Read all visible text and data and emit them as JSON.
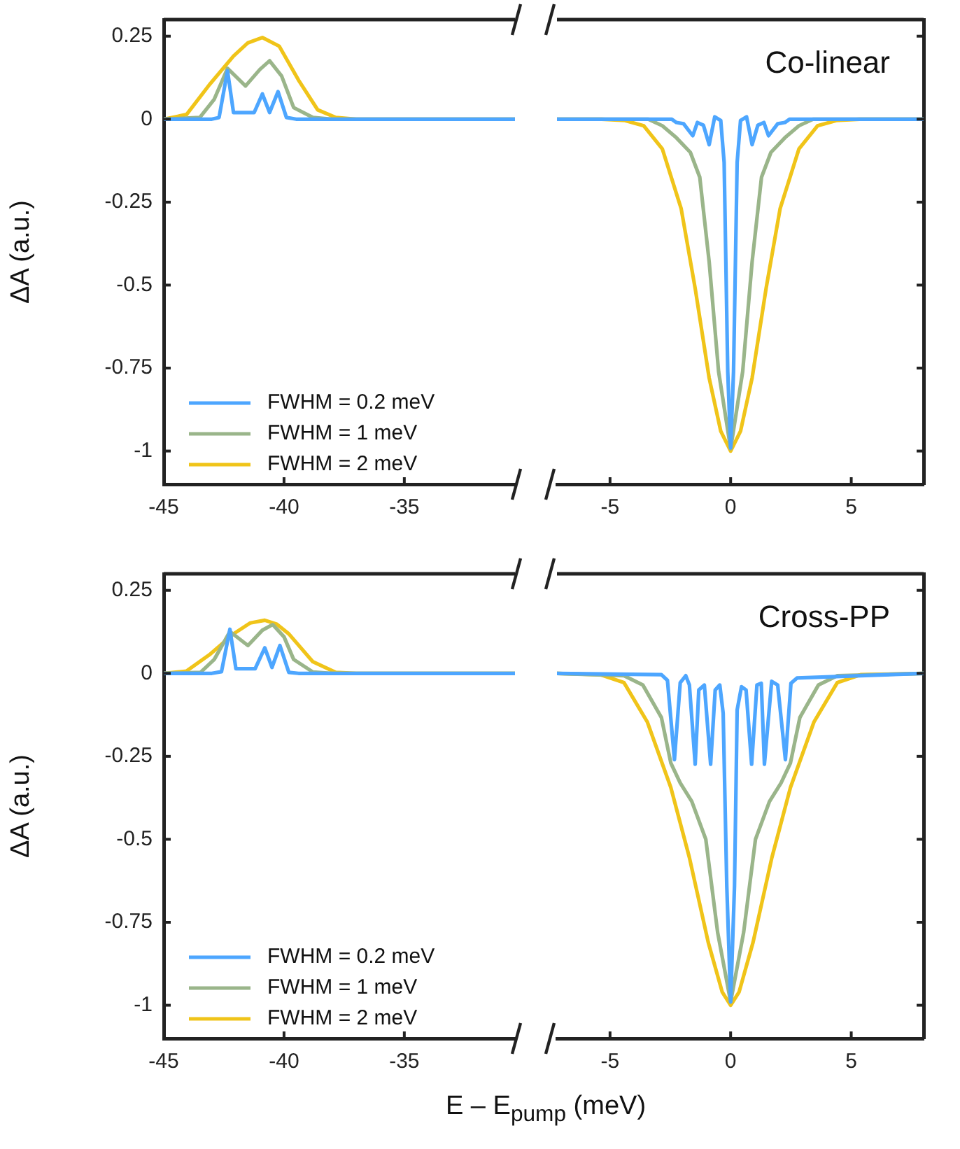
{
  "chart_data": [
    {
      "type": "line",
      "ylabel": "ΔA (a.u.)",
      "xlim": [
        -45,
        -30.4
      ],
      "xticks": [
        -45,
        -40,
        -35
      ],
      "ylim": [
        -1.1,
        0.3
      ],
      "yticks": [
        0.25,
        0,
        -0.25,
        -0.5,
        -0.75,
        -1
      ],
      "legend": "bottom left",
      "marker": "none",
      "line_style": "solid",
      "series": [
        {
          "name": "FWHM = 0.2 meV",
          "color": "#4da6ff",
          "x": [
            -45,
            -43,
            -42.7,
            -42.35,
            -42.1,
            -41.24,
            -40.9,
            -40.6,
            -40.25,
            -39.9,
            -39.5,
            -30.4
          ],
          "values": [
            0,
            0,
            0.005,
            0.146,
            0.02,
            0.02,
            0.076,
            0.02,
            0.083,
            0.005,
            0,
            0
          ]
        },
        {
          "name": "FWHM = 1 meV",
          "color": "#9ab58a",
          "x": [
            -45,
            -43.5,
            -42.9,
            -42.35,
            -41.6,
            -41,
            -40.6,
            -40.1,
            -39.6,
            -38.8,
            -38,
            -30.4
          ],
          "values": [
            0,
            0.005,
            0.06,
            0.153,
            0.1,
            0.15,
            0.176,
            0.13,
            0.035,
            0.005,
            0,
            0
          ]
        },
        {
          "name": "FWHM = 2 meV",
          "color": "#f0c419",
          "x": [
            -45,
            -44.05,
            -43.1,
            -42.1,
            -41.5,
            -40.9,
            -40.2,
            -39.4,
            -38.6,
            -37.85,
            -37,
            -30.4
          ],
          "values": [
            0,
            0.014,
            0.104,
            0.19,
            0.23,
            0.246,
            0.22,
            0.118,
            0.028,
            0.005,
            0,
            0
          ]
        }
      ]
    },
    {
      "type": "line",
      "title": "Co-linear",
      "xlim": [
        -7.2,
        8
      ],
      "xticks": [
        -5,
        0,
        5
      ],
      "ylim": [
        -1.1,
        0.3
      ],
      "yticks": [
        0.25,
        0,
        -0.25,
        -0.5,
        -0.75,
        -1
      ],
      "tick_labels": "x",
      "marker": "none",
      "line_style": "solid",
      "series": [
        {
          "color": "#4da6ff",
          "x": [
            -7.2,
            -2.44,
            -2.25,
            -1.95,
            -1.57,
            -1.38,
            -1.13,
            -0.89,
            -0.66,
            -0.41,
            -0.27,
            -0.12,
            0,
            0.12,
            0.27,
            0.41,
            0.66,
            0.89,
            1.13,
            1.38,
            1.57,
            1.95,
            2.25,
            2.44,
            8
          ],
          "values": [
            0,
            0,
            -0.01,
            -0.014,
            -0.05,
            -0.01,
            -0.018,
            -0.077,
            0.007,
            -0.004,
            -0.13,
            -0.76,
            -0.99,
            -0.76,
            -0.13,
            -0.004,
            0.007,
            -0.077,
            -0.018,
            -0.01,
            -0.05,
            -0.014,
            -0.01,
            0,
            0
          ]
        },
        {
          "color": "#9ab58a",
          "x": [
            -7.2,
            -3.41,
            -2.83,
            -2.25,
            -1.67,
            -1.28,
            -0.89,
            -0.5,
            0,
            0.5,
            0.89,
            1.28,
            1.67,
            2.25,
            2.83,
            3.41,
            8
          ],
          "values": [
            0,
            0,
            -0.02,
            -0.056,
            -0.1,
            -0.175,
            -0.43,
            -0.76,
            -0.993,
            -0.76,
            -0.43,
            -0.175,
            -0.1,
            -0.056,
            -0.02,
            0,
            0
          ]
        },
        {
          "color": "#f0c419",
          "x": [
            -7.2,
            -5.35,
            -4.38,
            -3.6,
            -2.83,
            -2.05,
            -1.47,
            -0.89,
            -0.41,
            0,
            0.41,
            0.89,
            1.47,
            2.05,
            2.83,
            3.6,
            4.38,
            5.35,
            8
          ],
          "values": [
            0,
            0,
            -0.004,
            -0.02,
            -0.09,
            -0.27,
            -0.51,
            -0.78,
            -0.94,
            -1,
            -0.94,
            -0.78,
            -0.51,
            -0.27,
            -0.09,
            -0.02,
            -0.004,
            0,
            0
          ]
        }
      ]
    },
    {
      "type": "line",
      "ylabel": "ΔA (a.u.)",
      "xlim": [
        -45,
        -30.4
      ],
      "xticks": [
        -45,
        -40,
        -35
      ],
      "ylim": [
        -1.1,
        0.3
      ],
      "yticks": [
        0.25,
        0,
        -0.25,
        -0.5,
        -0.75,
        -1
      ],
      "legend": "bottom left",
      "marker": "none",
      "line_style": "solid",
      "series": [
        {
          "name": "FWHM = 0.2 meV",
          "color": "#4da6ff",
          "x": [
            -45,
            -43,
            -42.6,
            -42.25,
            -42,
            -41.2,
            -40.8,
            -40.5,
            -40.17,
            -39.8,
            -39.4,
            -30.4
          ],
          "values": [
            0,
            0,
            0.005,
            0.133,
            0.014,
            0.014,
            0.077,
            0.018,
            0.084,
            0.003,
            0,
            0
          ]
        },
        {
          "name": "FWHM = 1 meV",
          "color": "#9ab58a",
          "x": [
            -45,
            -43.47,
            -42.9,
            -42.25,
            -41.5,
            -40.9,
            -40.47,
            -40,
            -39.6,
            -38.8,
            -38,
            -30.4
          ],
          "values": [
            0,
            0.003,
            0.042,
            0.126,
            0.084,
            0.13,
            0.147,
            0.11,
            0.042,
            0.004,
            0,
            0
          ]
        },
        {
          "name": "FWHM = 2 meV",
          "color": "#f0c419",
          "x": [
            -45,
            -44.05,
            -43.1,
            -42.1,
            -41.4,
            -40.8,
            -40.3,
            -39.8,
            -38.8,
            -37.85,
            -37,
            -30.4
          ],
          "values": [
            0,
            0.007,
            0.056,
            0.119,
            0.152,
            0.16,
            0.148,
            0.119,
            0.035,
            0.003,
            0,
            0
          ]
        }
      ]
    },
    {
      "type": "line",
      "title": "Cross-PP",
      "xlabel": "E – E$_{pump}$ (meV)",
      "xlim": [
        -7.2,
        8
      ],
      "xticks": [
        -5,
        0,
        5
      ],
      "ylim": [
        -1.1,
        0.3
      ],
      "yticks": [
        0.25,
        0,
        -0.25,
        -0.5,
        -0.75,
        -1
      ],
      "tick_labels": "x",
      "marker": "none",
      "line_style": "solid",
      "series": [
        {
          "color": "#4da6ff",
          "x": [
            -7.2,
            -2.87,
            -2.62,
            -2.33,
            -2.09,
            -1.86,
            -1.71,
            -1.47,
            -1.32,
            -1.09,
            -0.83,
            -0.64,
            -0.45,
            -0.31,
            -0.16,
            0,
            0.16,
            0.27,
            0.45,
            0.64,
            0.87,
            1.09,
            1.27,
            1.4,
            1.7,
            1.95,
            2.27,
            2.5,
            2.75,
            8
          ],
          "values": [
            0,
            -0.004,
            -0.021,
            -0.26,
            -0.028,
            -0.007,
            -0.035,
            -0.274,
            -0.05,
            -0.035,
            -0.274,
            -0.05,
            -0.035,
            -0.12,
            -0.64,
            -0.99,
            -0.64,
            -0.11,
            -0.04,
            -0.05,
            -0.274,
            -0.035,
            -0.03,
            -0.274,
            -0.024,
            -0.035,
            -0.26,
            -0.03,
            -0.014,
            0
          ]
        },
        {
          "color": "#9ab58a",
          "x": [
            -7.2,
            -4.42,
            -3.64,
            -2.87,
            -2.48,
            -2.09,
            -1.61,
            -1.03,
            -0.54,
            0,
            0.54,
            1.03,
            1.61,
            2.09,
            2.48,
            2.87,
            3.64,
            4.42,
            8
          ],
          "values": [
            0,
            -0.007,
            -0.035,
            -0.133,
            -0.27,
            -0.33,
            -0.386,
            -0.5,
            -0.78,
            -0.99,
            -0.78,
            -0.5,
            -0.386,
            -0.33,
            -0.27,
            -0.133,
            -0.035,
            -0.007,
            0
          ]
        },
        {
          "color": "#f0c419",
          "x": [
            -7.2,
            -5.39,
            -4.42,
            -3.45,
            -2.48,
            -1.71,
            -0.93,
            -0.35,
            0,
            0.35,
            0.93,
            1.71,
            2.48,
            3.45,
            4.42,
            5.39,
            8
          ],
          "values": [
            0,
            -0.004,
            -0.028,
            -0.147,
            -0.344,
            -0.555,
            -0.81,
            -0.96,
            -1,
            -0.96,
            -0.81,
            -0.555,
            -0.344,
            -0.147,
            -0.028,
            -0.004,
            0
          ]
        }
      ]
    }
  ]
}
